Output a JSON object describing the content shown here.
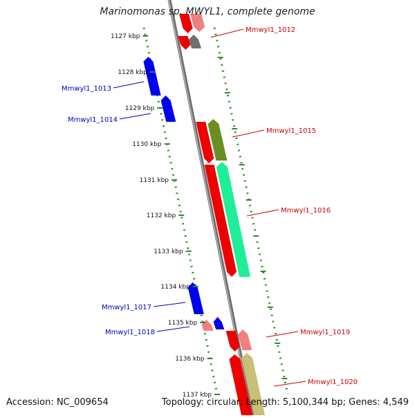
{
  "title": "Marinomonas sp. MWYL1, complete genome",
  "footer": {
    "accession": "Accession: NC_009654",
    "summary": "Topology: circular; Length: 5,100,344 bp; Genes: 4,549"
  },
  "colors": {
    "backbone": "#8a8a8a",
    "tick_dots": "#2e8b2e",
    "forward_label": "#cc0000",
    "reverse_label": "#0000bb"
  },
  "position_labels": [
    "1127 kbp",
    "1128 kbp",
    "1129 kbp",
    "1130 kbp",
    "1131 kbp",
    "1132 kbp",
    "1133 kbp",
    "1134 kbp",
    "1135 kbp",
    "1136 kbp",
    "1137 kbp"
  ],
  "genes": [
    {
      "id": "Mmwyl1_1012",
      "strand": "forward"
    },
    {
      "id": "Mmwyl1_1013",
      "strand": "reverse"
    },
    {
      "id": "Mmwyl1_1014",
      "strand": "reverse"
    },
    {
      "id": "Mmwyl1_1015",
      "strand": "forward"
    },
    {
      "id": "Mmwyl1_1016",
      "strand": "forward"
    },
    {
      "id": "Mmwyl1_1017",
      "strand": "reverse"
    },
    {
      "id": "Mmwyl1_1018",
      "strand": "reverse"
    },
    {
      "id": "Mmwyl1_1019",
      "strand": "forward"
    },
    {
      "id": "Mmwyl1_1020",
      "strand": "forward"
    }
  ]
}
